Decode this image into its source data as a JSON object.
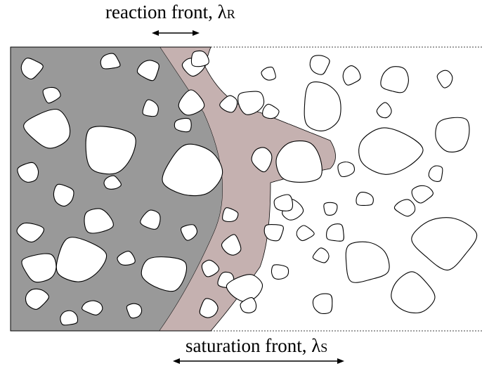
{
  "top_label": {
    "text": "reaction front, λ",
    "sub": "R"
  },
  "bottom_label": {
    "text": "saturation front, λ",
    "sub": "S"
  },
  "colors": {
    "reacted": "#999999",
    "reaction_zone": "#c5b1b0",
    "unsaturated": "#ffffff",
    "outline": "#000000"
  },
  "icons": [
    "double-arrow-icon"
  ]
}
